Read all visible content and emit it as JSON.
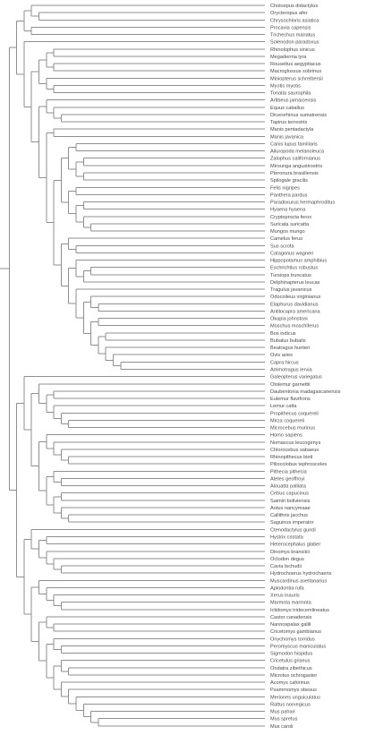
{
  "tree": {
    "newick": "(((((Choloepus_didactylus,(Orycteropus_afer,Chrysochloris_asiatica)),(Procavia_capensis,Trichechus_manatus)),(Solenodon_paradoxus,((((Rhinolophus_sinicus,Megaderma_lyra),(Rousettus_aegyptiacus,Macroglossus_sobrinus)),(Miniopterus_schreibersii,(Myotis_myotis,Tonatia_saurophila))),((Artibeus_jamaicensis,(Equus_caballus,(Dicerorhinus_sumatrensis,Tapirus_terrestris))),((Manis_pentadactyla,Manis_javanica),((((Canis_lupus_familiaris,Ailuropoda_melanoleuca),((Zalophus_californianus,Mirounga_angustirostris),(Pteronura_brasiliensis,Spilogale_gracilis))),((Felis_nigripes,Panthera_pardus),((Paradoxurus_hermaphroditus,Hyaena_hyaena),(Cryptoprocta_ferox,(Suricata_suricatta,Mungos_mungo))))),((Camelus_ferus,(Sus_scrofa,Catagonus_wagneri)),((Hippopotamus_amphibius,((Eschrichtius_robustus,Tursiops_truncatus),Delphinapterus_leucas)),(Tragulus_javanicus,((Odocoileus_virginianus,(Elaphurus_davidianus,Antilocapra_americana)),((Okapia_johnstoni,Moschus_moschiferus),((Bos_indicus,Bubalus_bubalis),(Beatragus_hunteri,(Ovis_aries,(Capra_hircus,Ammotragus_lervia))))))))))))))),((Galeopterus_variegatus,((Otolemur_garnettii,((Daubentonia_madagascariensis,Eulemur_flavifrons),(Lemur_catta,(Propithecus_coquereli,(Mirza_coquereli,Microcebus_murinus))))),((Homo_sapiens,(Nomascus_leucogenys,(Chlorocebus_sabaeus,(Rhinopithecus_bieti,Piliocolobus_tephrosceles)))),((Pithecia_pithecia,(Ateles_geoffroyi,Alouatta_palliata)),((Cebus_capucinus,Saimiri_boliviensis),(Aotus_nancymaae,(Callithrix_jacchus,Saguinus_imperator))))))),((Ctenodactylus_gundi,((Hystrix_cristata,Heterocephalus_glaber),(Dinomys_branickii,(Octodon_degus,(Cavia_tschudii,Hydrochoerus_hydrochaeris))))),((Muscardinus_avellanarius,(Aplodontia_rufa,(Xerus_inauris,(Marmota_marmota,Ictidomys_tridecemlineatus)))),((Castor_canadensis,(Nannospalax_galili,Cricetomys_gambianus)),((Onychomys_torridus,(Peromyscus_maniculatus,Sigmodon_hispidus)),((Cricetulus_griseus,(Ondatra_zibethicus,Microtus_ochrogaster)),(Acomys_cahirinus,(Psammomys_obesus,(Meriones_unguiculatus,(Rattus_norvegicus,(Mus_pahari,(Mus_spretus,Mus_caroli))))))))))))));"
  }
}
